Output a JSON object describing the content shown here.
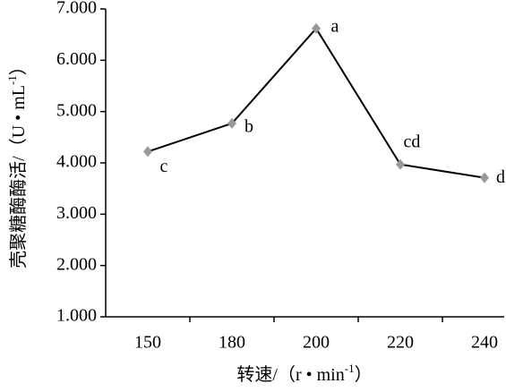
{
  "chart_data": {
    "type": "line",
    "categories": [
      "150",
      "180",
      "200",
      "220",
      "240"
    ],
    "series": [
      {
        "color": "#000000",
        "marker_color": "#999999",
        "values": [
          4.22,
          4.77,
          6.62,
          3.97,
          3.71
        ],
        "point_labels": [
          "c",
          "b",
          "a",
          "cd",
          "d"
        ]
      }
    ],
    "ylim": [
      1,
      7
    ],
    "yticks": [
      {
        "value": 1,
        "label": "1.000"
      },
      {
        "value": 2,
        "label": "2.000"
      },
      {
        "value": 3,
        "label": "3.000"
      },
      {
        "value": 4,
        "label": "4.000"
      },
      {
        "value": 5,
        "label": "5.000"
      },
      {
        "value": 6,
        "label": "6.000"
      },
      {
        "value": 7,
        "label": "7.000"
      }
    ],
    "xlabel": {
      "text": "转速/（r • min",
      "sup": "-1",
      "end": "）"
    },
    "ylabel": {
      "text": "壳聚糖酶酶活/（U • mL",
      "sup": "-1",
      "end": "）"
    },
    "grid": false
  }
}
